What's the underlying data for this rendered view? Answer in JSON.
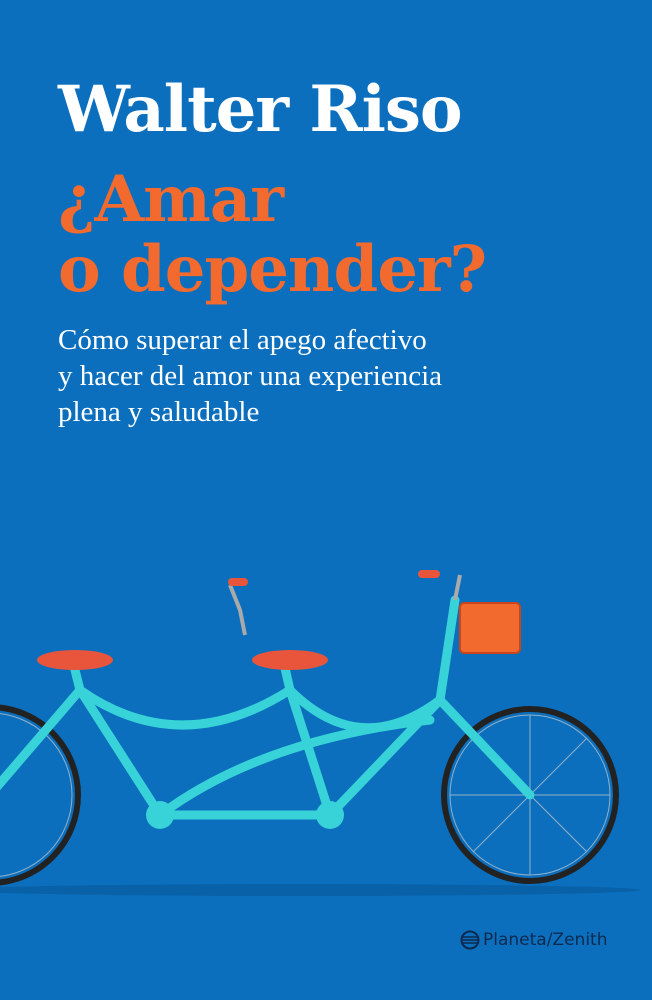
{
  "author": "Walter Riso",
  "title_lines": [
    "¿Amar",
    "o depender?"
  ],
  "subtitle_lines": [
    "Cómo superar el apego afectivo",
    "y hacer del amor una experiencia",
    "plena y saludable"
  ],
  "publisher": "Planeta/Zenith",
  "colors": {
    "background": "#0b6fbe",
    "title": "#f26a2e",
    "bike_frame": "#37d3d8",
    "saddle": "#e8553a"
  }
}
